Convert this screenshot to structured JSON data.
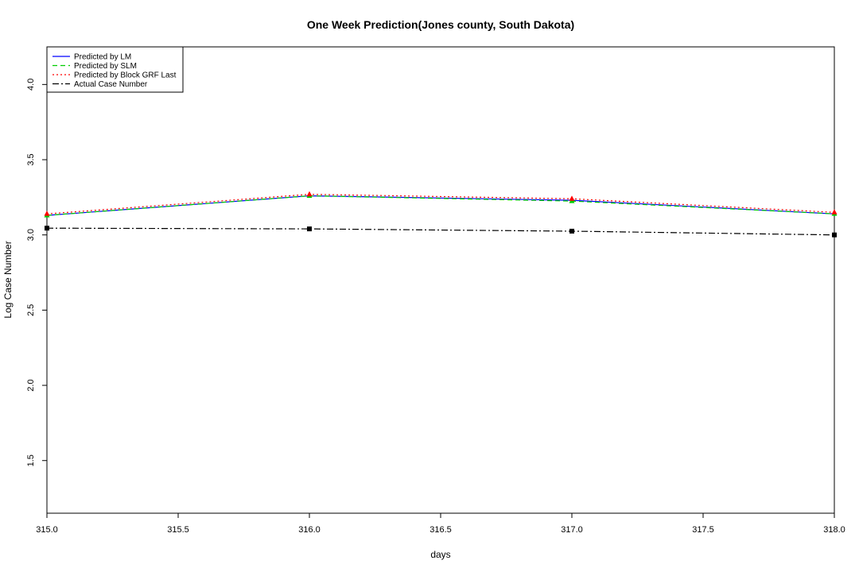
{
  "chart_data": {
    "type": "line",
    "title": "One Week Prediction(Jones county, South Dakota)",
    "xlabel": "days",
    "ylabel": "Log Case Number",
    "xlim": [
      315.0,
      318.0
    ],
    "ylim": [
      1.15,
      4.25
    ],
    "xticks": [
      "315.0",
      "315.5",
      "316.0",
      "316.5",
      "317.0",
      "317.5",
      "318.0"
    ],
    "yticks": [
      "1.5",
      "2.0",
      "2.5",
      "3.0",
      "3.5",
      "4.0"
    ],
    "grid": false,
    "legend_position": "top-left",
    "x": [
      315,
      316,
      317,
      318
    ],
    "series": [
      {
        "name": "Predicted by LM",
        "values": [
          3.13,
          3.26,
          3.23,
          3.14
        ],
        "color": "#0000ff",
        "dash": "solid",
        "marker": "none"
      },
      {
        "name": "Predicted by SLM",
        "values": [
          3.13,
          3.26,
          3.225,
          3.14
        ],
        "color": "#00cd00",
        "dash": "dashed",
        "marker": "triangle"
      },
      {
        "name": "Predicted by Block GRF Last",
        "values": [
          3.14,
          3.27,
          3.24,
          3.15
        ],
        "color": "#ff0000",
        "dash": "dotted",
        "marker": "triangle"
      },
      {
        "name": "Actual Case Number",
        "values": [
          3.045,
          3.04,
          3.025,
          3.0
        ],
        "color": "#000000",
        "dash": "dotdash",
        "marker": "square"
      }
    ]
  }
}
